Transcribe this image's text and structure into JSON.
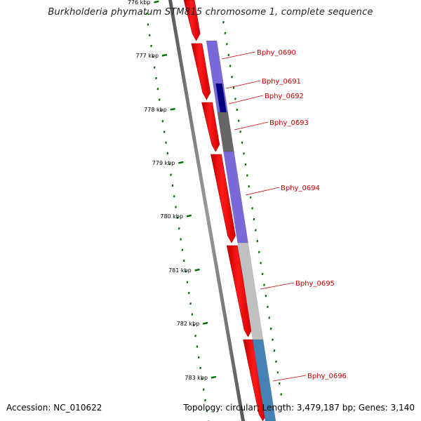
{
  "title": "Burkholderia phymatum STM815 chromosome 1, complete sequence",
  "footer": {
    "accession": "Accession: NC_010622",
    "stats": "Topology: circular; Length: 3,479,187 bp; Genes: 3,140"
  },
  "ticks": [
    "776 kbp",
    "777 kbp",
    "778 kbp",
    "779 kbp",
    "780 kbp",
    "781 kbp",
    "782 kbp",
    "783 kbp"
  ],
  "genes": [
    {
      "name": "Bphy_0690",
      "color": "#7b68d9"
    },
    {
      "name": "Bphy_0691",
      "color": "#000080"
    },
    {
      "name": "Bphy_0692",
      "color": "#000080"
    },
    {
      "name": "Bphy_0693",
      "color": "#666666"
    },
    {
      "name": "Bphy_0694",
      "color": "#7b68d9"
    },
    {
      "name": "Bphy_0695",
      "color": "#c0c0c0"
    },
    {
      "name": "Bphy_0696",
      "color": "#4682b4"
    }
  ],
  "colors": {
    "forward_strand": "#ff0000",
    "backbone": "#808080",
    "tick_marks": "#007000",
    "label_color": "#cc0000"
  }
}
